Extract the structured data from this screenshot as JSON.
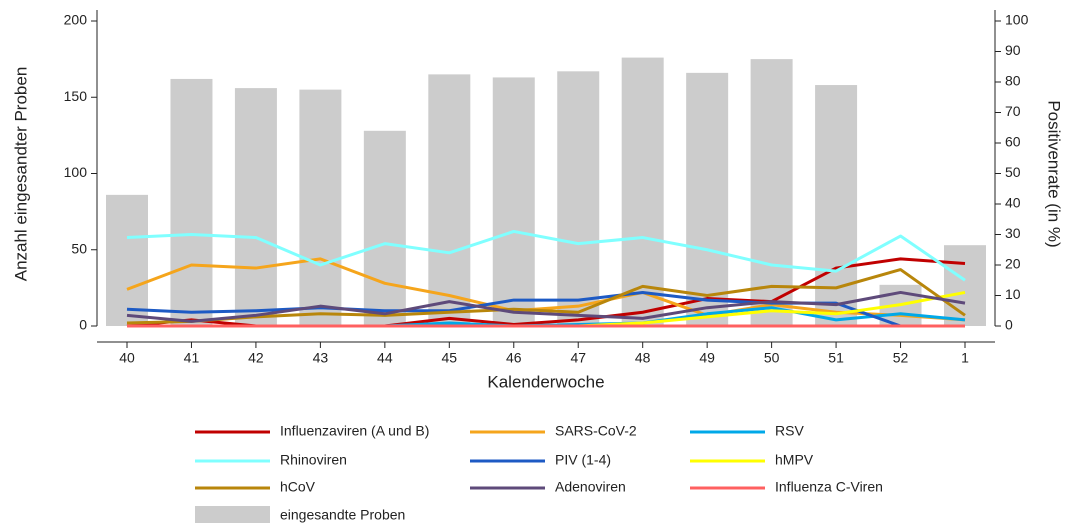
{
  "chart_data": {
    "type": "combo",
    "x_label": "Kalenderwoche",
    "y_label": "Anzahl eingesandter Proben",
    "y2_label": "Positivenrate (in %)",
    "categories": [
      "40",
      "41",
      "42",
      "43",
      "44",
      "45",
      "46",
      "47",
      "48",
      "49",
      "50",
      "51",
      "52",
      "1"
    ],
    "ylim": [
      0,
      200
    ],
    "yticks": [
      0,
      50,
      100,
      150,
      200
    ],
    "y2lim": [
      0,
      100
    ],
    "y2ticks": [
      0,
      10,
      20,
      30,
      40,
      50,
      60,
      70,
      80,
      90,
      100
    ],
    "series": [
      {
        "name": "Influenzaviren (A und B)",
        "type": "line",
        "axis": "y2",
        "color": "#c00000",
        "values": [
          0,
          2,
          0,
          0,
          0,
          2.5,
          0.5,
          2,
          4.5,
          9,
          8,
          19,
          22,
          20.5
        ]
      },
      {
        "name": "SARS-CoV-2",
        "type": "line",
        "axis": "y2",
        "color": "#f5a51c",
        "values": [
          12,
          20,
          19,
          22,
          14,
          10,
          5,
          6.5,
          11,
          3.5,
          7,
          4.5,
          3.5,
          2
        ]
      },
      {
        "name": "RSV",
        "type": "line",
        "axis": "y2",
        "color": "#00a8e8",
        "values": [
          0,
          0,
          0,
          0,
          0,
          1,
          0,
          0.5,
          1,
          4,
          6,
          2,
          4,
          2
        ]
      },
      {
        "name": "Rhinoviren",
        "type": "line",
        "axis": "y2",
        "color": "#80ffff",
        "values": [
          29,
          30,
          29,
          20,
          27,
          24,
          31,
          27,
          29,
          25,
          20,
          18,
          29.5,
          15
        ]
      },
      {
        "name": "PIV (1-4)",
        "type": "line",
        "axis": "y2",
        "color": "#1d5ac4",
        "values": [
          5.5,
          4.5,
          5,
          6,
          5,
          5,
          8.5,
          8.5,
          11,
          8.5,
          7.5,
          7.5,
          0,
          0
        ]
      },
      {
        "name": "hMPV",
        "type": "line",
        "axis": "y2",
        "color": "#ffff00",
        "values": [
          0,
          0,
          0,
          0,
          0,
          0,
          0,
          0,
          1,
          3,
          5,
          4,
          7,
          11
        ]
      },
      {
        "name": "hCoV",
        "type": "line",
        "axis": "y2",
        "color": "#b8860b",
        "values": [
          1,
          1.5,
          3,
          4,
          3.5,
          4.5,
          5.5,
          4.5,
          13,
          10,
          13,
          12.5,
          18.5,
          3.5
        ]
      },
      {
        "name": "Adenoviren",
        "type": "line",
        "axis": "y2",
        "color": "#5e4a7a",
        "values": [
          3.5,
          1.5,
          3.5,
          6.5,
          4,
          8,
          4.5,
          3.5,
          2.5,
          6,
          8,
          7,
          11,
          7.5
        ]
      },
      {
        "name": "Influenza C-Viren",
        "type": "line",
        "axis": "y2",
        "color": "#ff6060",
        "values": [
          0,
          0,
          0,
          0,
          0,
          0,
          0,
          0,
          0,
          0,
          0,
          0,
          0,
          0
        ]
      },
      {
        "name": "eingesandte Proben",
        "type": "bar",
        "axis": "y",
        "color": "#cccccc",
        "values": [
          86,
          162,
          156,
          155,
          128,
          165,
          163,
          167,
          176,
          166,
          175,
          158,
          27,
          53
        ]
      }
    ]
  }
}
